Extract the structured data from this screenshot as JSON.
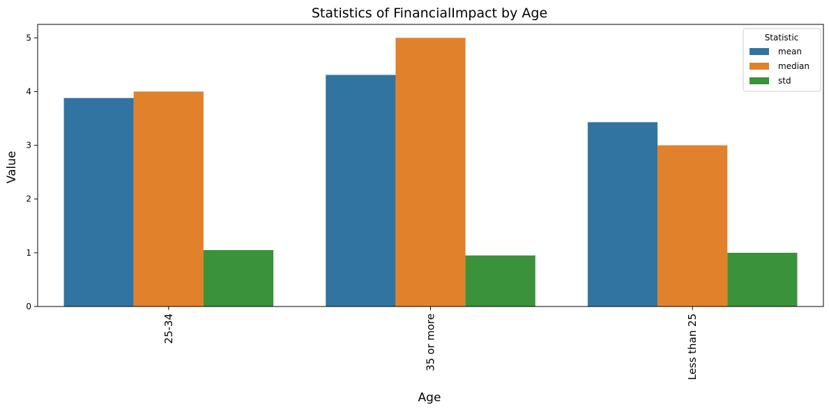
{
  "chart_data": {
    "type": "bar",
    "title": "Statistics of FinancialImpact by Age",
    "xlabel": "Age",
    "ylabel": "Value",
    "categories": [
      "25-34",
      "35 or more",
      "Less than 25"
    ],
    "series": [
      {
        "name": "mean",
        "values": [
          3.88,
          4.31,
          3.43
        ],
        "color": "#3274a1"
      },
      {
        "name": "median",
        "values": [
          4.0,
          5.0,
          3.0
        ],
        "color": "#e1812c"
      },
      {
        "name": "std",
        "values": [
          1.05,
          0.95,
          1.0
        ],
        "color": "#3a923a"
      }
    ],
    "ylim": [
      0,
      5.25
    ],
    "yticks": [
      0,
      1,
      2,
      3,
      4,
      5
    ],
    "grid": false,
    "legend": {
      "title": "Statistic",
      "position": "top-right"
    }
  }
}
